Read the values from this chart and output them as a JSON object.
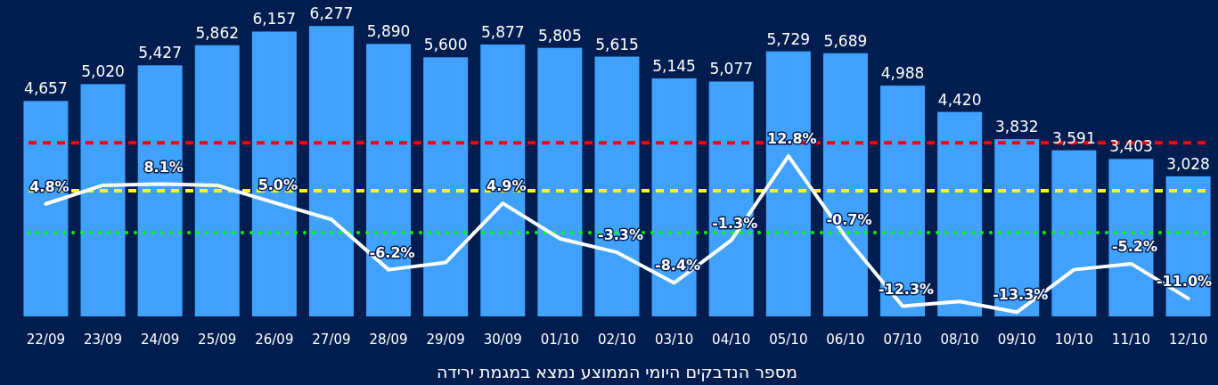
{
  "chart_data": {
    "type": "bar",
    "xlabel": "מספר הנדבקים היומי הממוצע נמצא במגמת ירידה",
    "categories": [
      "22/09",
      "23/09",
      "24/09",
      "25/09",
      "26/09",
      "27/09",
      "28/09",
      "29/09",
      "30/09",
      "01/10",
      "02/10",
      "03/10",
      "04/10",
      "05/10",
      "06/10",
      "07/10",
      "08/10",
      "09/10",
      "10/10",
      "11/10",
      "12/10"
    ],
    "ylim": [
      0,
      6300
    ],
    "y2lim": [
      -14,
      34.7
    ],
    "series": [
      {
        "color": "#41a1ff",
        "values": [
          4657,
          5020,
          5427,
          5862,
          6157,
          6277,
          5890,
          5600,
          5877,
          5805,
          5615,
          5145,
          5077,
          5729,
          5689,
          4988,
          4420,
          3832,
          3591,
          3403,
          3028
        ],
        "value_labels": [
          "4,657",
          "5,020",
          "5,427",
          "5,862",
          "6,157",
          "6,277",
          "5,890",
          "5,600",
          "5,877",
          "5,805",
          "5,615",
          "5,145",
          "5,077",
          "5,729",
          "5,689",
          "4,988",
          "4,420",
          "3,832",
          "3,591",
          "3,403",
          "3,028"
        ]
      },
      {
        "type": "line",
        "axis": "y2",
        "color": "#ffffff",
        "values": [
          4.8,
          7.9,
          8.1,
          7.9,
          5.0,
          2.2,
          -6.2,
          -5.0,
          4.9,
          -1.0,
          -3.3,
          -8.4,
          -1.3,
          12.8,
          -0.7,
          -12.3,
          -11.5,
          -13.3,
          -6.2,
          -5.2,
          -11.0
        ],
        "value_labels": [
          "4.8%",
          null,
          "8.1%",
          null,
          "5.0%",
          null,
          "-6.2%",
          null,
          "4.9%",
          null,
          "-3.3%",
          "-8.4%",
          "-1.3%",
          "12.8%",
          "-0.7%",
          "-12.3%",
          null,
          "-13.3%",
          null,
          "-5.2%",
          "-11.0%"
        ]
      }
    ],
    "ref_lines": [
      {
        "axis": "y2",
        "value": 15,
        "color": "#ff0000",
        "line_style": "dashed"
      },
      {
        "axis": "y2",
        "value": 7,
        "color": "#ffff00",
        "line_style": "dashed"
      },
      {
        "axis": "y2",
        "value": 0,
        "color": "#00ff00",
        "line_style": "dotted"
      }
    ]
  }
}
